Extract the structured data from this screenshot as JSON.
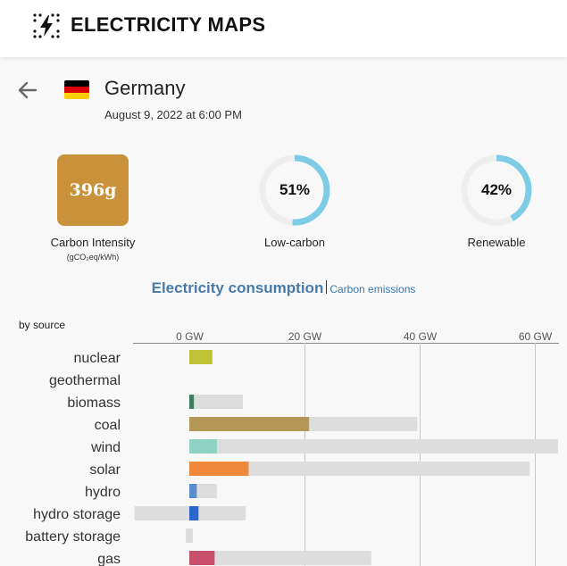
{
  "header": {
    "brand": "ELECTRICITY MAPS",
    "logo_icon": "lightning-bolt-icon"
  },
  "zone": {
    "back_icon": "arrow-left-icon",
    "country": "Germany",
    "flag_colors": [
      "#000000",
      "#dd0000",
      "#ffce00"
    ],
    "datetime": "August 9, 2022 at 6:00 PM"
  },
  "metrics": {
    "carbon_intensity": {
      "value": "396g",
      "label": "Carbon Intensity",
      "unit": "(gCO₂eq/kWh)",
      "color": "#c8913a"
    },
    "low_carbon": {
      "value": "51%",
      "label": "Low-carbon",
      "fraction": 0.51
    },
    "renewable": {
      "value": "42%",
      "label": "Renewable",
      "fraction": 0.42
    },
    "ring_color": "#7ecbe6",
    "ring_track": "#eeeeee"
  },
  "tabs": {
    "active": "Electricity consumption",
    "inactive": "Carbon emissions"
  },
  "by_source_label": "by source",
  "chart_data": {
    "type": "bar",
    "orientation": "horizontal",
    "unit": "GW",
    "xlim": [
      -9.5,
      64
    ],
    "ticks": [
      0,
      20,
      40,
      60
    ],
    "tick_labels": [
      "0 GW",
      "20 GW",
      "40 GW",
      "60 GW"
    ],
    "categories": [
      "nuclear",
      "geothermal",
      "biomass",
      "coal",
      "wind",
      "solar",
      "hydro",
      "hydro storage",
      "battery storage",
      "gas"
    ],
    "values": [
      4.0,
      0,
      0.8,
      20.8,
      4.8,
      10.3,
      1.3,
      1.6,
      0,
      4.4
    ],
    "capacity": [
      [
        0,
        4.0
      ],
      null,
      [
        0,
        9.3
      ],
      [
        0,
        39.6
      ],
      [
        0,
        64.0
      ],
      [
        0,
        59.1
      ],
      [
        0,
        4.8
      ],
      [
        -9.5,
        9.8
      ],
      [
        -0.6,
        0.6
      ],
      [
        0,
        31.6
      ]
    ],
    "colors": [
      "#bfc234",
      "#b6b6b6",
      "#3f7d62",
      "#b49757",
      "#8ed3c4",
      "#f0883a",
      "#5b8dcf",
      "#2b66cf",
      "#b6b6b6",
      "#c9506b"
    ],
    "capacity_color": "#dddddd",
    "grid": true
  }
}
